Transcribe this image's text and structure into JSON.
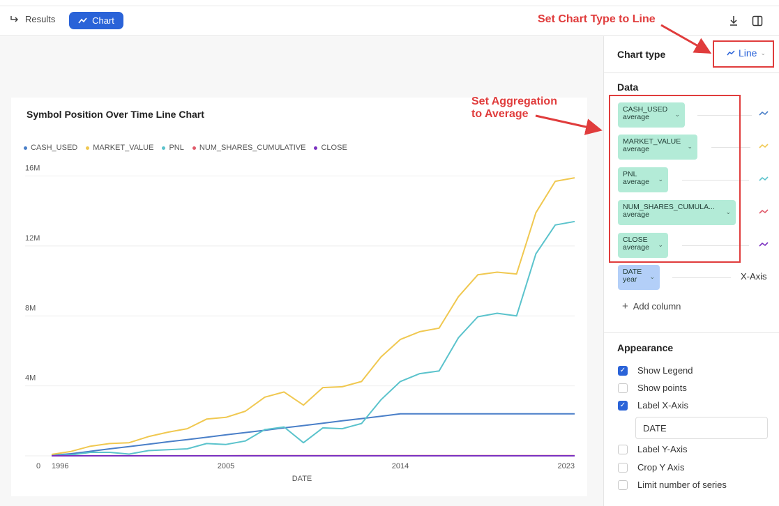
{
  "toolbar": {
    "results_label": "Results",
    "chart_label": "Chart",
    "download_icon": "download-icon",
    "panel_toggle_icon": "sidebar-toggle-icon"
  },
  "colors": {
    "accent": "#2a63d8",
    "annotation": "#e03c3c",
    "series": [
      "#4a7fc8",
      "#f0c850",
      "#5bc3cc",
      "#e05a6a",
      "#7a30c0"
    ]
  },
  "chart_data": {
    "type": "line",
    "title": "Symbol Position Over Time Line Chart",
    "xlabel": "DATE",
    "ylabel": "",
    "x": [
      1996,
      1997,
      1998,
      1999,
      2000,
      2001,
      2002,
      2003,
      2004,
      2005,
      2006,
      2007,
      2008,
      2009,
      2010,
      2011,
      2012,
      2013,
      2014,
      2015,
      2016,
      2017,
      2018,
      2019,
      2020,
      2021,
      2022,
      2023
    ],
    "xticks": [
      1996,
      2005,
      2014,
      2023
    ],
    "xtick_labels": [
      "1996",
      "2005",
      "2014",
      "2023"
    ],
    "yticks": [
      0,
      4000000,
      8000000,
      12000000,
      16000000
    ],
    "ytick_labels": [
      "0",
      "4M",
      "8M",
      "12M",
      "16M"
    ],
    "ylim": [
      0,
      16500000
    ],
    "grid": true,
    "legend_position": "top-left",
    "series": [
      {
        "name": "CASH_USED",
        "values": [
          30000,
          120000,
          260000,
          400000,
          530000,
          660000,
          800000,
          930000,
          1060000,
          1200000,
          1330000,
          1460000,
          1600000,
          1730000,
          1860000,
          2000000,
          2130000,
          2260000,
          2400000,
          2400000,
          2400000,
          2400000,
          2400000,
          2400000,
          2400000,
          2400000,
          2400000,
          2400000
        ]
      },
      {
        "name": "MARKET_VALUE",
        "values": [
          80000,
          250000,
          550000,
          700000,
          750000,
          1100000,
          1350000,
          1550000,
          2100000,
          2200000,
          2550000,
          3350000,
          3650000,
          2900000,
          3900000,
          3950000,
          4250000,
          5650000,
          6650000,
          7100000,
          7300000,
          9100000,
          10350000,
          10500000,
          10400000,
          13900000,
          15700000,
          15900000
        ]
      },
      {
        "name": "PNL",
        "values": [
          0,
          50000,
          200000,
          200000,
          100000,
          300000,
          350000,
          400000,
          700000,
          650000,
          850000,
          1500000,
          1650000,
          750000,
          1600000,
          1550000,
          1850000,
          3200000,
          4250000,
          4700000,
          4850000,
          6750000,
          7950000,
          8150000,
          8000000,
          11550000,
          13200000,
          13400000
        ]
      },
      {
        "name": "NUM_SHARES_CUMULATIVE",
        "values": [
          1000,
          1500,
          2000,
          2500,
          3000,
          3500,
          4000,
          4500,
          5000,
          5500,
          6000,
          6500,
          7000,
          7500,
          8000,
          8500,
          9000,
          9500,
          10000,
          10000,
          10000,
          10000,
          10000,
          10000,
          10000,
          10000,
          10000,
          10000
        ]
      },
      {
        "name": "CLOSE",
        "values": [
          10,
          12,
          15,
          20,
          25,
          30,
          35,
          40,
          45,
          50,
          55,
          60,
          65,
          70,
          75,
          80,
          85,
          90,
          95,
          100,
          105,
          110,
          115,
          120,
          125,
          130,
          135,
          140
        ]
      }
    ]
  },
  "sidebar": {
    "chart_type_title": "Chart type",
    "chart_type_value": "Line",
    "data_title": "Data",
    "columns": [
      {
        "name": "CASH_USED",
        "agg": "average"
      },
      {
        "name": "MARKET_VALUE",
        "agg": "average"
      },
      {
        "name": "PNL",
        "agg": "average"
      },
      {
        "name": "NUM_SHARES_CUMULA...",
        "agg": "average"
      },
      {
        "name": "CLOSE",
        "agg": "average"
      }
    ],
    "xaxis_column": {
      "name": "DATE",
      "agg": "year"
    },
    "xaxis_label": "X-Axis",
    "add_column": "Add column",
    "appearance_title": "Appearance",
    "options": [
      {
        "label": "Show Legend",
        "checked": true
      },
      {
        "label": "Show points",
        "checked": false
      },
      {
        "label": "Label X-Axis",
        "checked": true
      },
      {
        "label": "Label Y-Axis",
        "checked": false
      },
      {
        "label": "Crop Y Axis",
        "checked": false
      },
      {
        "label": "Limit number of series",
        "checked": false
      }
    ],
    "xaxis_input_value": "DATE"
  },
  "annotations": {
    "chart_type": "Set Chart Type to Line",
    "aggregation_line1": "Set Aggregation",
    "aggregation_line2": "to Average"
  }
}
